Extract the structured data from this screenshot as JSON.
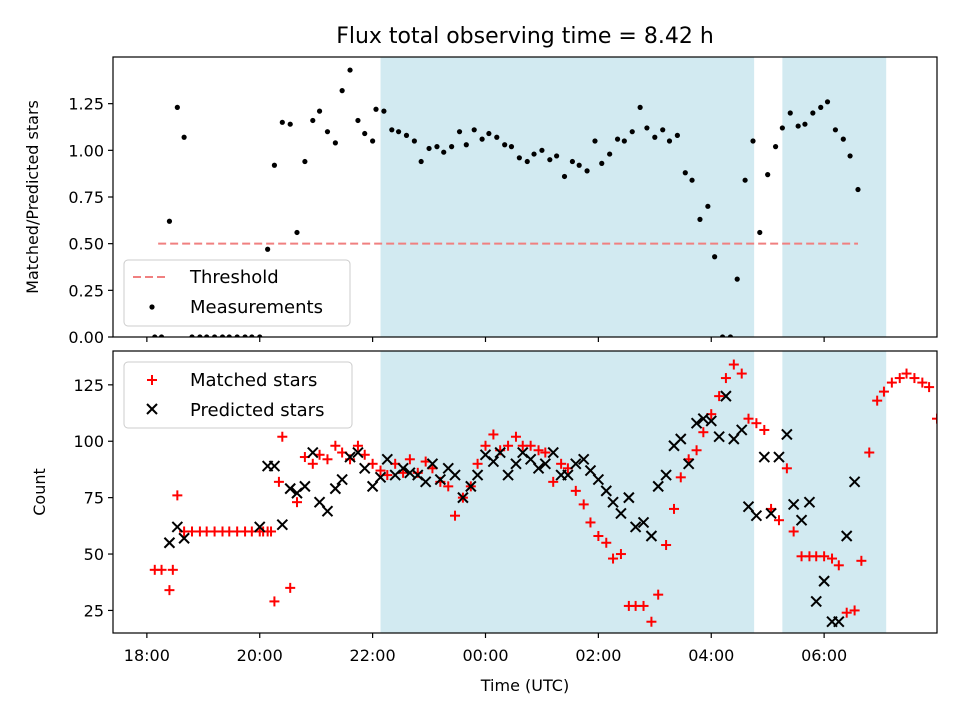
{
  "title": "Flux total observing time = 8.42 h",
  "chart_data": [
    {
      "type": "scatter",
      "ylabel": "Matched/Predicted stars",
      "xlim": [
        -0.3,
        7.0
      ],
      "ylim": [
        0.0,
        1.5
      ],
      "yticks": [
        0.0,
        0.25,
        0.5,
        0.75,
        1.0,
        1.25
      ],
      "ytick_labels": [
        "0.00",
        "0.25",
        "0.50",
        "0.75",
        "1.00",
        "1.25"
      ],
      "legend_position": "lower-left",
      "shaded_intervals": [
        [
          2.07,
          5.38
        ],
        [
          5.63,
          6.55
        ]
      ],
      "shade_color": "#add8e6",
      "threshold": {
        "name": "Threshold",
        "value": 0.5,
        "x_range": [
          0.1,
          6.3
        ],
        "color": "#f08080"
      },
      "series": [
        {
          "name": "Measurements",
          "color": "#000000",
          "x": [
            0.07,
            0.13,
            0.2,
            0.27,
            0.33,
            0.4,
            0.47,
            0.53,
            0.6,
            0.67,
            0.73,
            0.8,
            0.87,
            0.93,
            1.0,
            1.07,
            1.13,
            1.2,
            1.27,
            1.33,
            1.4,
            1.47,
            1.53,
            1.6,
            1.67,
            1.73,
            1.8,
            1.87,
            1.93,
            2.0,
            2.03,
            2.1,
            2.17,
            2.23,
            2.3,
            2.37,
            2.43,
            2.5,
            2.57,
            2.63,
            2.7,
            2.77,
            2.83,
            2.9,
            2.97,
            3.03,
            3.1,
            3.17,
            3.23,
            3.3,
            3.37,
            3.43,
            3.5,
            3.57,
            3.63,
            3.7,
            3.77,
            3.83,
            3.9,
            3.97,
            4.03,
            4.1,
            4.17,
            4.23,
            4.3,
            4.37,
            4.43,
            4.5,
            4.57,
            4.63,
            4.7,
            4.77,
            4.83,
            4.9,
            4.97,
            5.03,
            5.1,
            5.17,
            5.23,
            5.3,
            5.37,
            5.43,
            5.5,
            5.57,
            5.63,
            5.7,
            5.77,
            5.83,
            5.9,
            5.97,
            6.03,
            6.1,
            6.17,
            6.23,
            6.3
          ],
          "y": [
            0.0,
            0.0,
            0.62,
            1.23,
            1.07,
            0.0,
            0.0,
            0.0,
            0.0,
            0.0,
            0.0,
            0.0,
            0.0,
            0.0,
            0.0,
            0.47,
            0.92,
            1.15,
            1.14,
            0.56,
            0.94,
            1.16,
            1.21,
            1.1,
            1.04,
            1.32,
            1.43,
            1.16,
            1.09,
            1.05,
            1.22,
            1.21,
            1.11,
            1.1,
            1.08,
            1.05,
            0.94,
            1.01,
            1.02,
            0.99,
            1.02,
            1.1,
            1.03,
            1.11,
            1.06,
            1.09,
            1.07,
            1.03,
            1.02,
            0.96,
            0.94,
            0.98,
            1.0,
            0.95,
            0.97,
            0.86,
            0.94,
            0.92,
            0.89,
            1.05,
            0.93,
            0.98,
            1.06,
            1.05,
            1.1,
            1.23,
            1.12,
            1.07,
            1.11,
            1.05,
            1.08,
            0.88,
            0.84,
            0.63,
            0.7,
            0.43,
            0.0,
            0.0,
            0.31,
            0.84,
            1.05,
            0.56,
            0.87,
            1.02,
            1.12,
            1.2,
            1.13,
            1.14,
            1.2,
            1.23,
            1.26,
            1.11,
            1.06,
            0.97,
            0.79
          ]
        }
      ]
    },
    {
      "type": "scatter",
      "xlabel": "Time (UTC)",
      "ylabel": "Count",
      "xlim": [
        -0.3,
        7.0
      ],
      "ylim": [
        15,
        140
      ],
      "xticks": [
        0,
        1,
        2,
        3,
        4,
        5,
        6
      ],
      "xtick_labels": [
        "18:00",
        "20:00",
        "22:00",
        "00:00",
        "02:00",
        "04:00",
        "06:00"
      ],
      "yticks": [
        25,
        50,
        75,
        100,
        125
      ],
      "ytick_labels": [
        "25",
        "50",
        "75",
        "100",
        "125"
      ],
      "legend_position": "top-left",
      "shaded_intervals": [
        [
          2.07,
          5.38
        ],
        [
          5.63,
          6.55
        ]
      ],
      "shade_color": "#add8e6",
      "series": [
        {
          "name": "Matched stars",
          "marker": "+",
          "color": "#ff0000",
          "x": [
            0.07,
            0.13,
            0.2,
            0.23,
            0.27,
            0.33,
            0.4,
            0.47,
            0.53,
            0.6,
            0.67,
            0.73,
            0.8,
            0.87,
            0.93,
            1.0,
            1.03,
            1.07,
            1.1,
            1.13,
            1.17,
            1.2,
            1.27,
            1.33,
            1.4,
            1.47,
            1.53,
            1.6,
            1.67,
            1.73,
            1.8,
            1.87,
            1.93,
            2.0,
            2.07,
            2.13,
            2.2,
            2.27,
            2.33,
            2.4,
            2.47,
            2.53,
            2.6,
            2.67,
            2.73,
            2.8,
            2.87,
            2.93,
            3.0,
            3.07,
            3.13,
            3.2,
            3.27,
            3.33,
            3.4,
            3.47,
            3.53,
            3.6,
            3.67,
            3.73,
            3.8,
            3.87,
            3.93,
            4.0,
            4.07,
            4.13,
            4.2,
            4.27,
            4.33,
            4.4,
            4.47,
            4.53,
            4.6,
            4.67,
            4.73,
            4.8,
            4.87,
            4.93,
            5.0,
            5.07,
            5.13,
            5.2,
            5.27,
            5.33,
            5.4,
            5.47,
            5.53,
            5.6,
            5.67,
            5.73,
            5.8,
            5.87,
            5.93,
            6.0,
            6.07,
            6.13,
            6.2,
            6.27,
            6.33,
            6.4,
            6.47,
            6.53,
            6.6,
            6.67,
            6.73,
            6.8,
            6.87,
            6.93,
            7.0
          ],
          "y": [
            43,
            43,
            34,
            43,
            76,
            60,
            60,
            60,
            60,
            60,
            60,
            60,
            60,
            60,
            60,
            60,
            60,
            60,
            60,
            29,
            82,
            102,
            35,
            73,
            93,
            90,
            94,
            92,
            98,
            95,
            92,
            98,
            94,
            90,
            87,
            85,
            90,
            86,
            92,
            86,
            91,
            88,
            82,
            80,
            67,
            75,
            80,
            90,
            98,
            103,
            96,
            98,
            102,
            98,
            98,
            96,
            95,
            82,
            90,
            88,
            78,
            72,
            64,
            58,
            55,
            48,
            50,
            27,
            27,
            27,
            20,
            32,
            54,
            70,
            84,
            92,
            96,
            104,
            112,
            120,
            128,
            134,
            130,
            110,
            108,
            105,
            70,
            65,
            88,
            60,
            49,
            49,
            49,
            49,
            48,
            45,
            24,
            25,
            47,
            95,
            118,
            122,
            126,
            128,
            130,
            128,
            126,
            124,
            110
          ],
          "x_order": "as listed"
        },
        {
          "name": "Predicted stars",
          "marker": "x",
          "color": "#000000",
          "x": [
            0.2,
            0.27,
            0.33,
            1.0,
            1.07,
            1.13,
            1.2,
            1.27,
            1.33,
            1.4,
            1.47,
            1.53,
            1.6,
            1.67,
            1.73,
            1.8,
            1.87,
            1.93,
            2.0,
            2.07,
            2.13,
            2.2,
            2.27,
            2.33,
            2.4,
            2.47,
            2.53,
            2.6,
            2.67,
            2.73,
            2.8,
            2.87,
            2.93,
            3.0,
            3.07,
            3.13,
            3.2,
            3.27,
            3.33,
            3.4,
            3.47,
            3.53,
            3.6,
            3.67,
            3.73,
            3.8,
            3.87,
            3.93,
            4.0,
            4.07,
            4.13,
            4.2,
            4.27,
            4.33,
            4.4,
            4.47,
            4.53,
            4.6,
            4.67,
            4.73,
            4.8,
            4.87,
            4.93,
            5.0,
            5.07,
            5.13,
            5.2,
            5.27,
            5.33,
            5.4,
            5.47,
            5.53,
            5.6,
            5.67,
            5.73,
            5.8,
            5.87,
            5.93,
            6.0,
            6.07,
            6.13,
            6.2,
            6.27
          ],
          "y": [
            55,
            62,
            57,
            62,
            89,
            89,
            63,
            79,
            77,
            80,
            95,
            73,
            69,
            79,
            83,
            93,
            95,
            88,
            80,
            84,
            92,
            85,
            88,
            86,
            85,
            82,
            90,
            83,
            88,
            85,
            75,
            80,
            85,
            94,
            91,
            95,
            85,
            90,
            95,
            92,
            88,
            90,
            95,
            85,
            85,
            90,
            92,
            87,
            83,
            78,
            73,
            68,
            75,
            62,
            64,
            58,
            80,
            85,
            98,
            101,
            90,
            108,
            110,
            109,
            102,
            120,
            101,
            105,
            71,
            67,
            93,
            68,
            93,
            103,
            72,
            65,
            73,
            29,
            38,
            20,
            20,
            58,
            82
          ]
        }
      ]
    }
  ]
}
